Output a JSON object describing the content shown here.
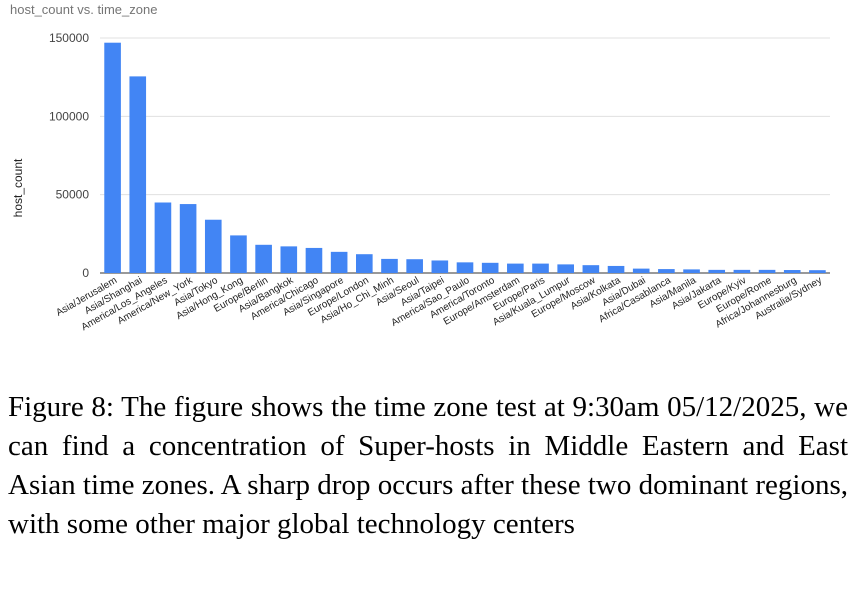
{
  "chart_data": {
    "type": "bar",
    "title": "host_count vs. time_zone",
    "xlabel": "",
    "ylabel": "host_count",
    "ylim": [
      0,
      150000
    ],
    "yticks": [
      "0",
      "50000",
      "100000",
      "150000"
    ],
    "grid": true,
    "legend": "none",
    "bar_color": "#4285f4",
    "categories": [
      "Asia/Jerusalem",
      "Asia/Shanghai",
      "America/Los_Angeles",
      "America/New_York",
      "Asia/Tokyo",
      "Asia/Hong_Kong",
      "Europe/Berlin",
      "Asia/Bangkok",
      "America/Chicago",
      "Asia/Singapore",
      "Europe/London",
      "Asia/Ho_Chi_Minh",
      "Asia/Seoul",
      "Asia/Taipei",
      "America/Sao_Paulo",
      "America/Toronto",
      "Europe/Amsterdam",
      "Europe/Paris",
      "Asia/Kuala_Lumpur",
      "Europe/Moscow",
      "Asia/Kolkata",
      "Asia/Dubai",
      "Africa/Casablanca",
      "Asia/Manila",
      "Asia/Jakarta",
      "Europe/Kyiv",
      "Europe/Rome",
      "Africa/Johannesburg",
      "Australia/Sydney"
    ],
    "values": [
      147000,
      125500,
      45000,
      44000,
      34000,
      24000,
      18000,
      17000,
      16000,
      13500,
      12000,
      9000,
      8800,
      8000,
      6800,
      6500,
      6000,
      6000,
      5500,
      5000,
      4500,
      2800,
      2500,
      2300,
      2000,
      2000,
      2000,
      1900,
      1800
    ]
  },
  "caption": "Figure 8: The figure shows the time zone test at 9:30am 05/12/2025, we can find a concentration of Super-hosts in Middle Eastern and East Asian time zones. A sharp drop occurs after these two dominant regions, with some other major global technology centers"
}
